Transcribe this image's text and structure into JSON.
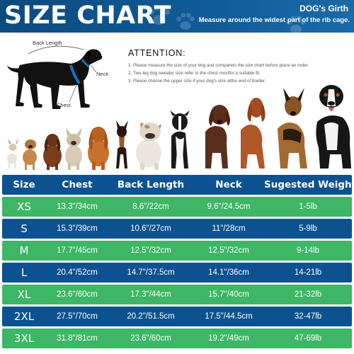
{
  "header": {
    "title": "SIZE CHART",
    "girth_title": "DOG's Girth",
    "girth_subtitle": "Measure around the widest part of the rib cage."
  },
  "diagram": {
    "back_length_label": "Back Length",
    "neck_label": "Neck",
    "chest_label": "Chest",
    "harness_color": "#1d6fb8"
  },
  "attention": {
    "title": "ATTENTION:",
    "items": [
      "1. Please measure the size of your dog and compareto the size chart before place an order.",
      "2. Two-leg dog sweater size refer to the chest mostfor a suitable fit.",
      "3. Please choose the upper size if your dog's size atthe end of border."
    ]
  },
  "table": {
    "headers": [
      "Size",
      "Chest",
      "Back Length",
      "Neck",
      "Sugested Weight"
    ],
    "rows": [
      {
        "size": "XS",
        "chest": "13.3\"/34cm",
        "back": "8.6\"/22cm",
        "neck": "9.6\"/24.5cm",
        "weight": "1-5lb"
      },
      {
        "size": "S",
        "chest": "15.3\"/39cm",
        "back": "10.6\"/27cm",
        "neck": "11\"/28cm",
        "weight": "5-9lb"
      },
      {
        "size": "M",
        "chest": "17.7\"/45cm",
        "back": "12.5\"/32cm",
        "neck": "12.5\"/32cm",
        "weight": "9-14lb"
      },
      {
        "size": "L",
        "chest": "20.4\"/52cm",
        "back": "14.7\"/37.5cm",
        "neck": "14.1\"/36cm",
        "weight": "14-21lb"
      },
      {
        "size": "XL",
        "chest": "23.6\"/60cm",
        "back": "17.3\"/44cm",
        "neck": "15.7\"/40cm",
        "weight": "21-32lb"
      },
      {
        "size": "2XL",
        "chest": "27.5\"/70cm",
        "back": "20.2\"/51.5cm",
        "neck": "17.5\"/44.5cm",
        "weight": "32-47lb"
      },
      {
        "size": "3XL",
        "chest": "31.8\"/81cm",
        "back": "23.6\"/60cm",
        "neck": "19.2\"/49cm",
        "weight": "47-69lb"
      }
    ]
  },
  "colors": {
    "header_blue": "#0d5290",
    "row_green": "#3db665",
    "row_blue": "#0d5290"
  }
}
